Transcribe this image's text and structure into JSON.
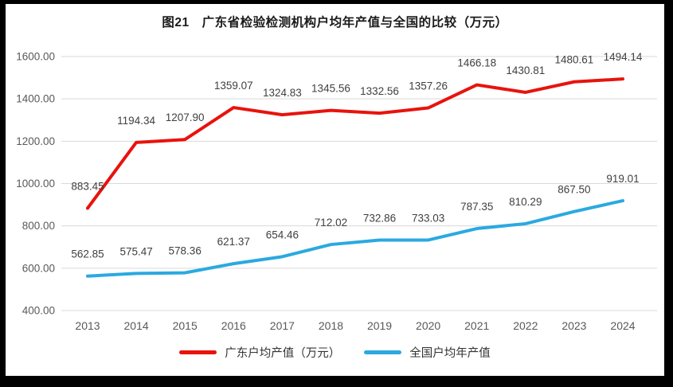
{
  "frame": {
    "outer_background": "#000000",
    "chart_background": "#ffffff"
  },
  "chart_data": {
    "type": "line",
    "title": "图21　广东省检验检测机构户均年产值与全国的比较（万元）",
    "categories": [
      "2013",
      "2014",
      "2015",
      "2016",
      "2017",
      "2018",
      "2019",
      "2020",
      "2021",
      "2022",
      "2023",
      "2024"
    ],
    "series": [
      {
        "name": "广东户均产值（万元）",
        "color": "#e8130d",
        "values": [
          883.45,
          1194.34,
          1207.9,
          1359.07,
          1324.83,
          1345.56,
          1332.56,
          1357.26,
          1466.18,
          1430.81,
          1480.61,
          1494.14
        ]
      },
      {
        "name": "全国户均年产值",
        "color": "#2ba9e0",
        "values": [
          562.85,
          575.47,
          578.36,
          621.37,
          654.46,
          712.02,
          732.86,
          733.03,
          787.35,
          810.29,
          867.5,
          919.01
        ]
      }
    ],
    "ylim": [
      400,
      1600
    ],
    "ytick_step": 200,
    "ytick_labels": [
      "400.00",
      "600.00",
      "800.00",
      "1000.00",
      "1200.00",
      "1400.00",
      "1600.00"
    ],
    "grid": true,
    "legend_position": "bottom",
    "data_labels": true,
    "colors": {
      "gridline": "#d9d9d9",
      "tick_text": "#595959",
      "data_label_text": "#404040",
      "title_text": "#1a1a1a"
    }
  }
}
